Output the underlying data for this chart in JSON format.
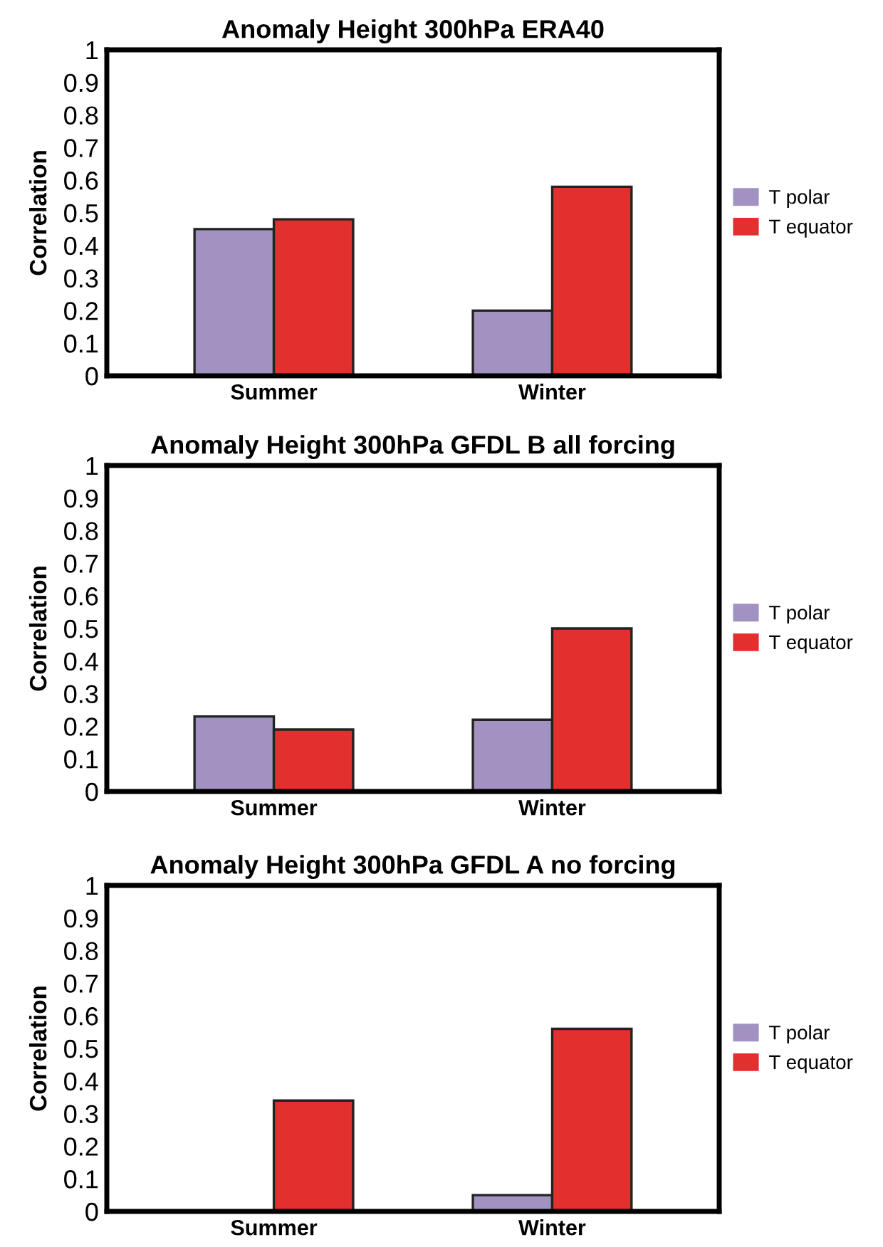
{
  "chart_data": [
    {
      "type": "bar",
      "title": "Anomaly Height 300hPa ERA40",
      "ylabel": "Correlation",
      "categories": [
        "Summer",
        "Winter"
      ],
      "series": [
        {
          "name": "T polar",
          "color": "#a192c2",
          "values": [
            0.45,
            0.2
          ]
        },
        {
          "name": "T equator",
          "color": "#e32f2d",
          "values": [
            0.48,
            0.58
          ]
        }
      ],
      "ylim": [
        0,
        1
      ],
      "yticks": [
        0,
        0.1,
        0.2,
        0.3,
        0.4,
        0.5,
        0.6,
        0.7,
        0.8,
        0.9,
        1
      ],
      "grid": false,
      "legend": "right"
    },
    {
      "type": "bar",
      "title": "Anomaly Height 300hPa GFDL B all forcing",
      "ylabel": "Correlation",
      "categories": [
        "Summer",
        "Winter"
      ],
      "series": [
        {
          "name": "T polar",
          "color": "#a192c2",
          "values": [
            0.23,
            0.22
          ]
        },
        {
          "name": "T equator",
          "color": "#e32f2d",
          "values": [
            0.19,
            0.5
          ]
        }
      ],
      "ylim": [
        0,
        1
      ],
      "yticks": [
        0,
        0.1,
        0.2,
        0.3,
        0.4,
        0.5,
        0.6,
        0.7,
        0.8,
        0.9,
        1
      ],
      "grid": false,
      "legend": "right"
    },
    {
      "type": "bar",
      "title": "Anomaly Height 300hPa GFDL A no forcing",
      "ylabel": "Correlation",
      "categories": [
        "Summer",
        "Winter"
      ],
      "series": [
        {
          "name": "T polar",
          "color": "#a192c2",
          "values": [
            null,
            0.05
          ]
        },
        {
          "name": "T equator",
          "color": "#e32f2d",
          "values": [
            0.34,
            0.56
          ]
        }
      ],
      "ylim": [
        0,
        1
      ],
      "yticks": [
        0,
        0.1,
        0.2,
        0.3,
        0.4,
        0.5,
        0.6,
        0.7,
        0.8,
        0.9,
        1
      ],
      "grid": false,
      "legend": "right"
    }
  ]
}
